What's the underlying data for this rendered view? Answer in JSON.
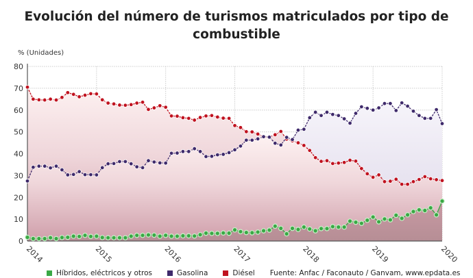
{
  "title": "Evolución del número de turismos matriculados por tipo de combustible",
  "source": "Fuente: Anfac / Faconauto / Ganvam, www.epdata.es",
  "chart_data": {
    "type": "line",
    "title": "Evolución del número de turismos matriculados por tipo de combustible",
    "ylabel": "% (Unidades)",
    "ylim": [
      0,
      80
    ],
    "yticks": [
      0,
      10,
      20,
      30,
      40,
      50,
      60,
      70,
      80
    ],
    "xticks": [
      "2014",
      "2015",
      "2016",
      "2017",
      "2018",
      "2019",
      "2020"
    ],
    "grid": true,
    "legend": "bottom",
    "x_start": "2014-01",
    "x_step": "month",
    "series": [
      {
        "name": "Híbridos, eléctricos y otros",
        "color": "#3aa845",
        "values": [
          1.7,
          1.1,
          1.1,
          1.1,
          1.5,
          1.1,
          1.6,
          1.7,
          2.2,
          2.1,
          2.6,
          2.1,
          2.2,
          1.6,
          1.5,
          1.5,
          1.5,
          1.5,
          2.2,
          2.6,
          2.6,
          2.8,
          2.7,
          2.2,
          2.6,
          2.2,
          2.2,
          2.4,
          2.4,
          2.3,
          2.9,
          3.6,
          3.5,
          3.5,
          3.7,
          3.6,
          5.1,
          4.3,
          3.9,
          3.8,
          4.1,
          4.7,
          5.0,
          6.8,
          5.8,
          3.3,
          5.8,
          5.3,
          6.4,
          5.5,
          4.7,
          5.7,
          5.7,
          6.6,
          6.4,
          6.4,
          9.1,
          8.6,
          8.1,
          9.5,
          11.0,
          8.8,
          10.1,
          9.7,
          11.8,
          10.4,
          12.0,
          13.5,
          14.3,
          14.0,
          15.2,
          12.0,
          18.3
        ]
      },
      {
        "name": "Gasolina",
        "color": "#3f2a6b",
        "values": [
          27.5,
          33.8,
          34.3,
          34.3,
          33.5,
          34.3,
          32.6,
          30.3,
          30.5,
          31.8,
          30.4,
          30.4,
          30.3,
          33.6,
          35.4,
          35.5,
          36.4,
          36.4,
          35.4,
          34.0,
          33.6,
          36.8,
          36.2,
          35.8,
          35.7,
          40.2,
          40.3,
          41.0,
          41.0,
          42.3,
          41.0,
          38.7,
          38.8,
          39.5,
          39.7,
          40.5,
          41.8,
          43.5,
          46.2,
          46.2,
          46.8,
          47.8,
          47.6,
          44.8,
          44.0,
          47.5,
          46.5,
          50.8,
          51.2,
          56.5,
          59.0,
          57.5,
          59.0,
          58.0,
          57.5,
          56.0,
          54.0,
          58.5,
          61.5,
          60.8,
          60.0,
          61.0,
          63.0,
          63.0,
          59.8,
          63.3,
          61.8,
          59.5,
          57.5,
          56.2,
          56.2,
          60.2,
          53.8
        ]
      },
      {
        "name": "Diésel",
        "color": "#c0121f",
        "values": [
          70.5,
          65.0,
          64.7,
          64.6,
          65.0,
          64.6,
          65.8,
          68.0,
          67.2,
          66.1,
          66.8,
          67.5,
          67.4,
          64.7,
          63.2,
          62.8,
          62.3,
          62.2,
          62.5,
          63.2,
          63.6,
          60.3,
          61.0,
          62.0,
          61.3,
          57.3,
          57.2,
          56.5,
          56.2,
          55.4,
          56.6,
          57.3,
          57.5,
          56.8,
          56.3,
          56.2,
          52.9,
          52.0,
          50.1,
          50.0,
          49.0,
          47.8,
          47.7,
          48.7,
          50.2,
          46.7,
          45.9,
          45.0,
          43.8,
          41.5,
          38.2,
          36.5,
          36.8,
          35.5,
          35.7,
          36.0,
          37.0,
          36.6,
          33.2,
          30.8,
          29.2,
          30.3,
          27.2,
          27.4,
          28.3,
          26.0,
          26.0,
          27.2,
          28.2,
          29.5,
          28.5,
          28.1,
          27.7
        ]
      }
    ]
  }
}
